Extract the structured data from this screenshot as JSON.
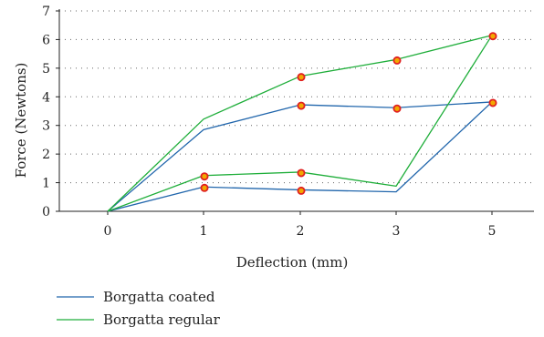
{
  "chart_data": {
    "type": "line",
    "xlabel": "Deflection (mm)",
    "ylabel": "Force (Newtons)",
    "x_ticks": [
      "0",
      "1",
      "2",
      "3",
      "5"
    ],
    "y_ticks": [
      "0",
      "1",
      "2",
      "3",
      "4",
      "5",
      "6",
      "7"
    ],
    "ylim": [
      0,
      7
    ],
    "grid": "horizontal dotted",
    "legend_placement": "bottom-left",
    "series": [
      {
        "name": "Borgatta coated",
        "color": "#2166ac",
        "points": [
          [
            0,
            0
          ],
          [
            1,
            2.85
          ],
          [
            2,
            3.72
          ],
          [
            3,
            3.62
          ],
          [
            5,
            3.82
          ],
          [
            3,
            0.68
          ],
          [
            2,
            0.75
          ],
          [
            1,
            0.85
          ],
          [
            0,
            0
          ]
        ],
        "markers": [
          [
            1,
            0.85
          ],
          [
            2,
            0.75
          ],
          [
            2,
            3.72
          ],
          [
            3,
            3.62
          ],
          [
            5,
            3.82
          ]
        ]
      },
      {
        "name": "Borgatta regular",
        "color": "#1fae3a",
        "points": [
          [
            0,
            0
          ],
          [
            1,
            3.22
          ],
          [
            2,
            4.72
          ],
          [
            3,
            5.3
          ],
          [
            5,
            6.15
          ],
          [
            3,
            0.88
          ],
          [
            2,
            1.37
          ],
          [
            1,
            1.25
          ],
          [
            0,
            0
          ]
        ],
        "markers": [
          [
            1,
            1.25
          ],
          [
            2,
            1.37
          ],
          [
            2,
            4.72
          ],
          [
            3,
            5.3
          ],
          [
            5,
            6.15
          ]
        ]
      }
    ]
  }
}
